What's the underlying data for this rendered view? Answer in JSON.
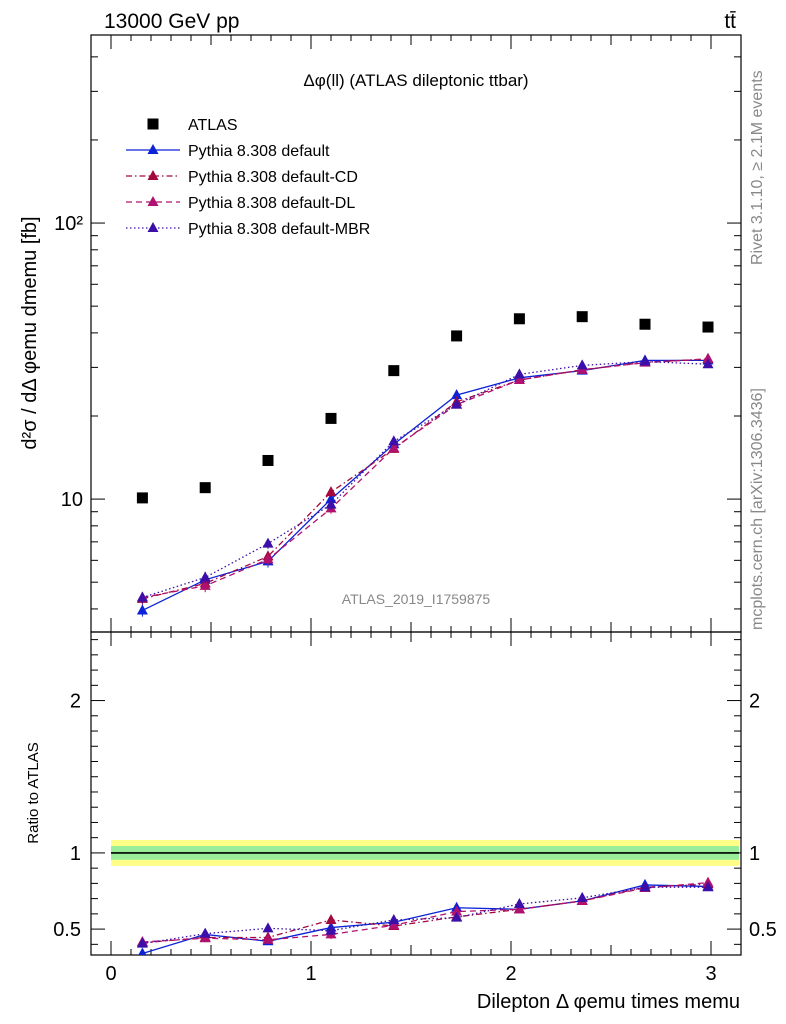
{
  "header": {
    "energy": "13000 GeV pp",
    "process": "tt̄"
  },
  "side_labels": {
    "rivet": "Rivet 3.1.10, ≥ 2.1M events",
    "mcplots": "mcplots.cern.ch [arXiv:1306.3436]"
  },
  "chart_data": [
    {
      "type": "scatter",
      "title": "Δφ(ll) (ATLAS dileptonic ttbar)",
      "watermark": "ATLAS_2019_I1759875",
      "ylabel": "d²σ / dΔ φemu dmemu [fb]",
      "yscale": "log",
      "ylim": [
        3.3,
        480
      ],
      "xlim": [
        -0.1,
        3.15
      ],
      "y_ticks": [
        {
          "value": 10,
          "label": "10"
        },
        {
          "value": 100,
          "label": "10²"
        }
      ],
      "x": [
        0.157,
        0.471,
        0.785,
        1.1,
        1.414,
        1.728,
        2.042,
        2.356,
        2.67,
        2.985
      ],
      "series": [
        {
          "name": "ATLAS",
          "style": "data",
          "color": "#000000",
          "values": [
            10.1,
            11.0,
            13.8,
            19.6,
            29.2,
            39.0,
            45.0,
            45.8,
            43.0,
            42.0
          ]
        },
        {
          "name": "Pythia 8.308 default",
          "style": "solid",
          "color": "#0b22d6",
          "values": [
            3.95,
            5.1,
            5.95,
            10.0,
            15.8,
            23.8,
            27.5,
            29.2,
            31.8,
            31.8
          ],
          "err": [
            0.2,
            0.25,
            0.3,
            0.4,
            0.5,
            0.6,
            0.6,
            0.6,
            0.7,
            0.7
          ]
        },
        {
          "name": "Pythia 8.308 default-CD",
          "style": "dashdot",
          "color": "#a3083e",
          "values": [
            4.35,
            4.95,
            6.2,
            10.6,
            15.2,
            22.5,
            27.0,
            29.4,
            31.3,
            32.2
          ],
          "err": [
            0.2,
            0.25,
            0.3,
            0.4,
            0.5,
            0.6,
            0.6,
            0.6,
            0.7,
            0.7
          ]
        },
        {
          "name": "Pythia 8.308 default-DL",
          "style": "dashed",
          "color": "#b0106e",
          "values": [
            4.4,
            4.85,
            6.05,
            9.25,
            15.3,
            22.0,
            27.0,
            29.4,
            31.2,
            32.2
          ],
          "err": [
            0.2,
            0.25,
            0.3,
            0.4,
            0.5,
            0.6,
            0.6,
            0.6,
            0.7,
            0.7
          ]
        },
        {
          "name": "Pythia 8.308 default-MBR",
          "style": "dotted",
          "color": "#3b0fa8",
          "values": [
            4.4,
            5.2,
            6.9,
            9.55,
            16.2,
            22.0,
            28.3,
            30.5,
            31.5,
            30.8
          ],
          "err": [
            0.2,
            0.25,
            0.3,
            0.4,
            0.5,
            0.6,
            0.6,
            0.6,
            0.7,
            0.7
          ]
        }
      ]
    },
    {
      "type": "scatter",
      "ylabel": "Ratio to ATLAS",
      "xlabel": "Dilepton Δ φemu times memu",
      "ylim": [
        0.33,
        2.45
      ],
      "xlim": [
        -0.1,
        3.15
      ],
      "y_ticks": [
        {
          "value": 0.5,
          "label": "0.5"
        },
        {
          "value": 1,
          "label": "1"
        },
        {
          "value": 2,
          "label": "2"
        }
      ],
      "x_ticks": [
        {
          "value": 0,
          "label": "0"
        },
        {
          "value": 1,
          "label": "1"
        },
        {
          "value": 2,
          "label": "2"
        },
        {
          "value": 3,
          "label": "3"
        }
      ],
      "band_inner": 0.045,
      "band_outer": 0.085,
      "x": [
        0.157,
        0.471,
        0.785,
        1.1,
        1.414,
        1.728,
        2.042,
        2.356,
        2.67,
        2.985
      ],
      "series": [
        {
          "name": "Pythia 8.308 default",
          "style": "solid",
          "color": "#0b22d6",
          "values": [
            0.34,
            0.465,
            0.42,
            0.51,
            0.545,
            0.64,
            0.63,
            0.685,
            0.79,
            0.78
          ],
          "err": [
            0.02,
            0.025,
            0.02,
            0.03,
            0.02,
            0.02,
            0.02,
            0.015,
            0.02,
            0.015
          ]
        },
        {
          "name": "Pythia 8.308 default-CD",
          "style": "dashdot",
          "color": "#a3083e",
          "values": [
            0.41,
            0.445,
            0.445,
            0.56,
            0.52,
            0.58,
            0.63,
            0.685,
            0.775,
            0.795
          ],
          "err": [
            0.02,
            0.025,
            0.02,
            0.03,
            0.02,
            0.02,
            0.02,
            0.015,
            0.02,
            0.015
          ]
        },
        {
          "name": "Pythia 8.308 default-DL",
          "style": "dashed",
          "color": "#b0106e",
          "values": [
            0.415,
            0.44,
            0.43,
            0.465,
            0.525,
            0.615,
            0.63,
            0.685,
            0.77,
            0.805
          ],
          "err": [
            0.02,
            0.025,
            0.02,
            0.03,
            0.02,
            0.02,
            0.02,
            0.015,
            0.02,
            0.015
          ]
        },
        {
          "name": "Pythia 8.308 default-MBR",
          "style": "dotted",
          "color": "#3b0fa8",
          "values": [
            0.405,
            0.47,
            0.505,
            0.49,
            0.56,
            0.575,
            0.665,
            0.705,
            0.775,
            0.775
          ],
          "err": [
            0.02,
            0.025,
            0.02,
            0.03,
            0.02,
            0.02,
            0.02,
            0.015,
            0.02,
            0.015
          ]
        }
      ]
    }
  ]
}
